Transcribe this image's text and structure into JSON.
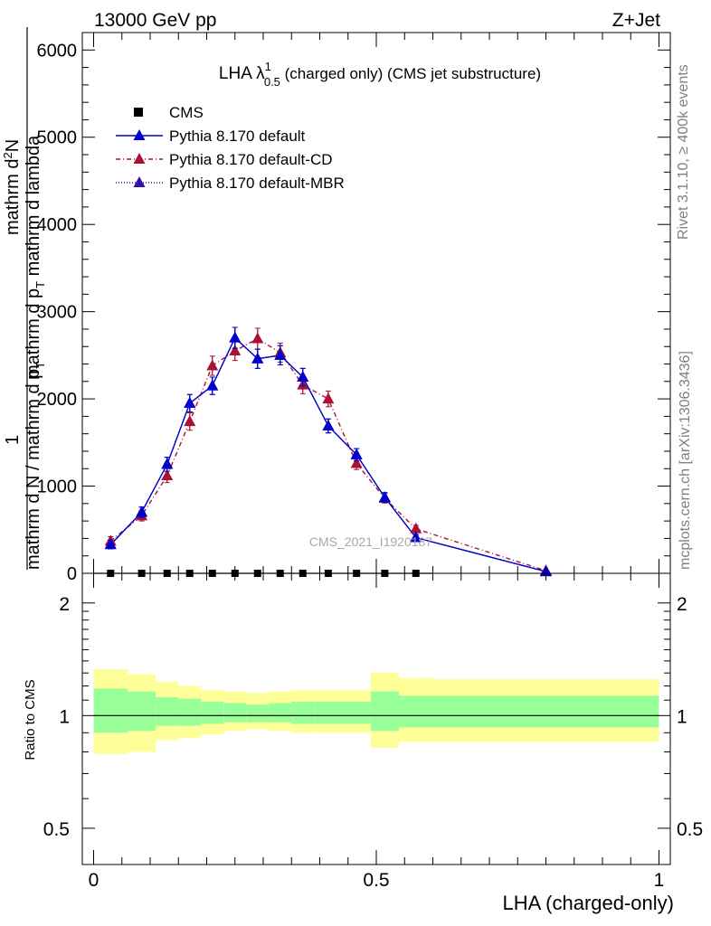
{
  "header": {
    "left": "13000 GeV pp",
    "right": "Z+Jet"
  },
  "side_labels": {
    "rivet": "Rivet 3.1.10, ≥ 400k events",
    "mcplots": "mcplots.cern.ch [arXiv:1306.3436]"
  },
  "main_title": {
    "prefix": "LHA λ",
    "sup": "1",
    "sub": "0.5",
    "suffix": " (charged only) (CMS jet substructure)"
  },
  "y_axis_label": {
    "numerator_top": "mathrm d",
    "numerator_sup": "2",
    "numerator_rest": "N",
    "denominator": "mathrm d p",
    "denominator_sub": "T",
    "denominator_rest": " mathrm d lambda",
    "one": "1",
    "lower": "mathrm d N / mathrm d p",
    "lower_sub": "T"
  },
  "watermark": "CMS_2021_I1920187",
  "legend": [
    {
      "label": "CMS",
      "style": "square",
      "color": "#000000",
      "dash": ""
    },
    {
      "label": "Pythia 8.170 default",
      "style": "triangle",
      "color": "#0000cc",
      "dash": ""
    },
    {
      "label": "Pythia 8.170 default-CD",
      "style": "triangle",
      "color": "#aa1133",
      "dash": "5,3,1,3"
    },
    {
      "label": "Pythia 8.170 default-MBR",
      "style": "triangle",
      "color": "#3311aa",
      "dash": "1,2"
    }
  ],
  "ratio_panel": {
    "ylabel": "Ratio to CMS",
    "yticks": [
      {
        "value": 0.5,
        "label": "0.5"
      },
      {
        "value": 1,
        "label": "1"
      },
      {
        "value": 2,
        "label": "2"
      }
    ],
    "ylim": [
      0.4,
      2.4
    ]
  },
  "x_axis": {
    "label": "LHA (charged-only)",
    "ticks": [
      {
        "value": 0,
        "label": "0"
      },
      {
        "value": 0.5,
        "label": "0.5"
      },
      {
        "value": 1,
        "label": "1"
      }
    ]
  },
  "chart_data": {
    "type": "line",
    "xlim": [
      -0.02,
      1.02
    ],
    "ylim": [
      0,
      6200
    ],
    "yticks": [
      {
        "value": 0,
        "label": "0"
      },
      {
        "value": 1000,
        "label": "1000"
      },
      {
        "value": 2000,
        "label": "2000"
      },
      {
        "value": 3000,
        "label": "3000"
      },
      {
        "value": 4000,
        "label": "4000"
      },
      {
        "value": 5000,
        "label": "5000"
      },
      {
        "value": 6000,
        "label": "6000"
      }
    ],
    "bins": [
      {
        "lo": 0.0,
        "hi": 0.06
      },
      {
        "lo": 0.06,
        "hi": 0.11
      },
      {
        "lo": 0.11,
        "hi": 0.15
      },
      {
        "lo": 0.15,
        "hi": 0.19
      },
      {
        "lo": 0.19,
        "hi": 0.23
      },
      {
        "lo": 0.23,
        "hi": 0.27
      },
      {
        "lo": 0.27,
        "hi": 0.31
      },
      {
        "lo": 0.31,
        "hi": 0.35
      },
      {
        "lo": 0.35,
        "hi": 0.39
      },
      {
        "lo": 0.39,
        "hi": 0.44
      },
      {
        "lo": 0.44,
        "hi": 0.49
      },
      {
        "lo": 0.49,
        "hi": 0.54
      },
      {
        "lo": 0.54,
        "hi": 0.6
      },
      {
        "lo": 0.6,
        "hi": 1.0
      }
    ],
    "series": [
      {
        "name": "CMS",
        "x": [
          0.03,
          0.085,
          0.13,
          0.17,
          0.21,
          0.25,
          0.29,
          0.33,
          0.37,
          0.415,
          0.465,
          0.515,
          0.57
        ],
        "values": [
          0,
          0,
          0,
          0,
          0,
          0,
          0,
          0,
          0,
          0,
          0,
          0,
          0
        ]
      },
      {
        "name": "Pythia 8.170 default",
        "x": [
          0.03,
          0.085,
          0.13,
          0.17,
          0.21,
          0.25,
          0.29,
          0.33,
          0.37,
          0.415,
          0.465,
          0.515,
          0.57,
          0.8
        ],
        "values": [
          330,
          700,
          1250,
          1950,
          2150,
          2700,
          2460,
          2500,
          2250,
          1690,
          1360,
          870,
          410,
          20
        ],
        "errors": [
          50,
          60,
          80,
          100,
          100,
          120,
          110,
          110,
          100,
          80,
          70,
          55,
          35,
          10
        ]
      },
      {
        "name": "Pythia 8.170 default-CD",
        "x": [
          0.03,
          0.085,
          0.13,
          0.17,
          0.21,
          0.25,
          0.29,
          0.33,
          0.37,
          0.415,
          0.465,
          0.515,
          0.57,
          0.8
        ],
        "values": [
          370,
          660,
          1120,
          1740,
          2380,
          2550,
          2690,
          2530,
          2160,
          2000,
          1260,
          860,
          510,
          30
        ],
        "errors": [
          50,
          60,
          80,
          100,
          110,
          110,
          120,
          110,
          100,
          90,
          70,
          55,
          40,
          10
        ]
      },
      {
        "name": "Pythia 8.170 default-MBR",
        "x": [
          0.03,
          0.085,
          0.13,
          0.17,
          0.21,
          0.25,
          0.29,
          0.33,
          0.37,
          0.415,
          0.465,
          0.515,
          0.57,
          0.8
        ],
        "values": [
          330,
          700,
          1250,
          1950,
          2150,
          2700,
          2460,
          2500,
          2250,
          1690,
          1360,
          870,
          410,
          20
        ],
        "errors": [
          50,
          60,
          80,
          100,
          100,
          120,
          110,
          110,
          100,
          80,
          70,
          55,
          35,
          10
        ]
      }
    ],
    "ratio_bands": {
      "yellow": [
        [
          0.79,
          1.33
        ],
        [
          0.8,
          1.29
        ],
        [
          0.86,
          1.23
        ],
        [
          0.87,
          1.2
        ],
        [
          0.89,
          1.17
        ],
        [
          0.91,
          1.16
        ],
        [
          0.92,
          1.15
        ],
        [
          0.91,
          1.16
        ],
        [
          0.9,
          1.17
        ],
        [
          0.9,
          1.17
        ],
        [
          0.9,
          1.17
        ],
        [
          0.82,
          1.3
        ],
        [
          0.85,
          1.26
        ],
        [
          0.85,
          1.25
        ]
      ],
      "green": [
        [
          0.9,
          1.18
        ],
        [
          0.91,
          1.16
        ],
        [
          0.94,
          1.12
        ],
        [
          0.94,
          1.11
        ],
        [
          0.95,
          1.09
        ],
        [
          0.96,
          1.08
        ],
        [
          0.96,
          1.07
        ],
        [
          0.96,
          1.08
        ],
        [
          0.95,
          1.09
        ],
        [
          0.95,
          1.09
        ],
        [
          0.95,
          1.09
        ],
        [
          0.91,
          1.16
        ],
        [
          0.93,
          1.13
        ],
        [
          0.93,
          1.13
        ]
      ]
    }
  }
}
